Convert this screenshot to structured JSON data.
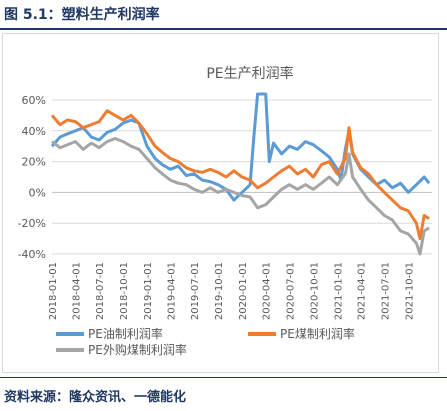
{
  "figure_title": "图 5.1：塑料生产利润率",
  "source": "资料来源：隆众资讯、一德能化",
  "colors": {
    "oil": "#5b9bd5",
    "coal": "#ed7d31",
    "purchased": "#a5a5a5",
    "title": "#1f3864"
  },
  "chart_data": {
    "type": "line",
    "title": "PE生产利润率",
    "xlabel": "",
    "ylabel": "",
    "ylim": [
      -0.4,
      0.6
    ],
    "yticks": [
      "-40%",
      "-20%",
      "0%",
      "20%",
      "40%",
      "60%"
    ],
    "x_tick_labels": [
      "2018-01-01",
      "2018-04-01",
      "2018-07-01",
      "2018-10-01",
      "2019-01-01",
      "2019-04-01",
      "2019-07-01",
      "2019-10-01",
      "2020-01-01",
      "2020-04-01",
      "2020-07-01",
      "2020-10-01",
      "2021-01-01",
      "2021-04-01",
      "2021-07-01",
      "2021-10-01"
    ],
    "grid": true,
    "legend_position": "bottom",
    "series": [
      {
        "name": "PE油制利润率",
        "color": "#5b9bd5",
        "points": [
          [
            "2018-01-01",
            0.3
          ],
          [
            "2018-02-01",
            0.36
          ],
          [
            "2018-03-01",
            0.38
          ],
          [
            "2018-04-01",
            0.4
          ],
          [
            "2018-05-01",
            0.42
          ],
          [
            "2018-06-01",
            0.36
          ],
          [
            "2018-07-01",
            0.34
          ],
          [
            "2018-08-01",
            0.39
          ],
          [
            "2018-09-01",
            0.41
          ],
          [
            "2018-10-01",
            0.45
          ],
          [
            "2018-11-01",
            0.47
          ],
          [
            "2018-12-01",
            0.45
          ],
          [
            "2019-01-01",
            0.3
          ],
          [
            "2019-02-01",
            0.22
          ],
          [
            "2019-03-01",
            0.18
          ],
          [
            "2019-04-01",
            0.15
          ],
          [
            "2019-05-01",
            0.17
          ],
          [
            "2019-06-01",
            0.11
          ],
          [
            "2019-07-01",
            0.12
          ],
          [
            "2019-08-01",
            0.08
          ],
          [
            "2019-09-01",
            0.07
          ],
          [
            "2019-10-01",
            0.05
          ],
          [
            "2019-11-01",
            0.02
          ],
          [
            "2019-12-01",
            -0.05
          ],
          [
            "2020-01-01",
            0.0
          ],
          [
            "2020-02-01",
            0.05
          ],
          [
            "2020-02-15",
            0.35
          ],
          [
            "2020-03-01",
            0.68
          ],
          [
            "2020-03-15",
            0.7
          ],
          [
            "2020-04-01",
            0.65
          ],
          [
            "2020-04-15",
            0.2
          ],
          [
            "2020-05-01",
            0.32
          ],
          [
            "2020-06-01",
            0.25
          ],
          [
            "2020-07-01",
            0.3
          ],
          [
            "2020-08-01",
            0.28
          ],
          [
            "2020-09-01",
            0.33
          ],
          [
            "2020-10-01",
            0.31
          ],
          [
            "2020-11-01",
            0.27
          ],
          [
            "2020-12-01",
            0.23
          ],
          [
            "2021-01-01",
            0.15
          ],
          [
            "2021-01-15",
            0.08
          ],
          [
            "2021-02-01",
            0.28
          ],
          [
            "2021-02-15",
            0.4
          ],
          [
            "2021-03-01",
            0.25
          ],
          [
            "2021-04-01",
            0.15
          ],
          [
            "2021-05-01",
            0.1
          ],
          [
            "2021-06-01",
            0.05
          ],
          [
            "2021-07-01",
            0.08
          ],
          [
            "2021-08-01",
            0.03
          ],
          [
            "2021-09-01",
            0.06
          ],
          [
            "2021-10-01",
            0.0
          ],
          [
            "2021-11-01",
            0.05
          ],
          [
            "2021-12-01",
            0.1
          ],
          [
            "2021-12-20",
            0.06
          ]
        ]
      },
      {
        "name": "PE煤制利润率",
        "color": "#ed7d31",
        "points": [
          [
            "2018-01-01",
            0.5
          ],
          [
            "2018-02-01",
            0.44
          ],
          [
            "2018-03-01",
            0.47
          ],
          [
            "2018-04-01",
            0.46
          ],
          [
            "2018-05-01",
            0.42
          ],
          [
            "2018-06-01",
            0.44
          ],
          [
            "2018-07-01",
            0.46
          ],
          [
            "2018-08-01",
            0.53
          ],
          [
            "2018-09-01",
            0.5
          ],
          [
            "2018-10-01",
            0.47
          ],
          [
            "2018-11-01",
            0.5
          ],
          [
            "2018-12-01",
            0.45
          ],
          [
            "2019-01-01",
            0.38
          ],
          [
            "2019-02-01",
            0.3
          ],
          [
            "2019-03-01",
            0.26
          ],
          [
            "2019-04-01",
            0.22
          ],
          [
            "2019-05-01",
            0.2
          ],
          [
            "2019-06-01",
            0.16
          ],
          [
            "2019-07-01",
            0.14
          ],
          [
            "2019-08-01",
            0.13
          ],
          [
            "2019-09-01",
            0.15
          ],
          [
            "2019-10-01",
            0.13
          ],
          [
            "2019-11-01",
            0.1
          ],
          [
            "2019-12-01",
            0.14
          ],
          [
            "2020-01-01",
            0.1
          ],
          [
            "2020-02-01",
            0.08
          ],
          [
            "2020-03-01",
            0.03
          ],
          [
            "2020-04-01",
            0.06
          ],
          [
            "2020-05-01",
            0.1
          ],
          [
            "2020-06-01",
            0.14
          ],
          [
            "2020-07-01",
            0.17
          ],
          [
            "2020-08-01",
            0.12
          ],
          [
            "2020-09-01",
            0.15
          ],
          [
            "2020-10-01",
            0.1
          ],
          [
            "2020-11-01",
            0.18
          ],
          [
            "2020-12-01",
            0.2
          ],
          [
            "2021-01-01",
            0.12
          ],
          [
            "2021-02-01",
            0.22
          ],
          [
            "2021-02-15",
            0.42
          ],
          [
            "2021-03-01",
            0.26
          ],
          [
            "2021-04-01",
            0.16
          ],
          [
            "2021-05-01",
            0.12
          ],
          [
            "2021-06-01",
            0.05
          ],
          [
            "2021-07-01",
            0.0
          ],
          [
            "2021-08-01",
            -0.05
          ],
          [
            "2021-09-01",
            -0.1
          ],
          [
            "2021-10-01",
            -0.12
          ],
          [
            "2021-11-01",
            -0.2
          ],
          [
            "2021-11-15",
            -0.3
          ],
          [
            "2021-12-01",
            -0.15
          ],
          [
            "2021-12-20",
            -0.17
          ]
        ]
      },
      {
        "name": "PE外购煤制利润率",
        "color": "#a5a5a5",
        "points": [
          [
            "2018-01-01",
            0.33
          ],
          [
            "2018-02-01",
            0.29
          ],
          [
            "2018-03-01",
            0.31
          ],
          [
            "2018-04-01",
            0.33
          ],
          [
            "2018-05-01",
            0.28
          ],
          [
            "2018-06-01",
            0.32
          ],
          [
            "2018-07-01",
            0.29
          ],
          [
            "2018-08-01",
            0.33
          ],
          [
            "2018-09-01",
            0.35
          ],
          [
            "2018-10-01",
            0.33
          ],
          [
            "2018-11-01",
            0.3
          ],
          [
            "2018-12-01",
            0.28
          ],
          [
            "2019-01-01",
            0.22
          ],
          [
            "2019-02-01",
            0.16
          ],
          [
            "2019-03-01",
            0.12
          ],
          [
            "2019-04-01",
            0.08
          ],
          [
            "2019-05-01",
            0.06
          ],
          [
            "2019-06-01",
            0.05
          ],
          [
            "2019-07-01",
            0.02
          ],
          [
            "2019-08-01",
            0.0
          ],
          [
            "2019-09-01",
            0.03
          ],
          [
            "2019-10-01",
            0.0
          ],
          [
            "2019-11-01",
            0.02
          ],
          [
            "2019-12-01",
            0.0
          ],
          [
            "2020-01-01",
            -0.02
          ],
          [
            "2020-02-01",
            -0.03
          ],
          [
            "2020-03-01",
            -0.1
          ],
          [
            "2020-04-01",
            -0.08
          ],
          [
            "2020-05-01",
            -0.03
          ],
          [
            "2020-06-01",
            0.02
          ],
          [
            "2020-07-01",
            0.05
          ],
          [
            "2020-08-01",
            0.02
          ],
          [
            "2020-09-01",
            0.05
          ],
          [
            "2020-10-01",
            0.02
          ],
          [
            "2020-11-01",
            0.06
          ],
          [
            "2020-12-01",
            0.1
          ],
          [
            "2021-01-01",
            0.05
          ],
          [
            "2021-02-01",
            0.12
          ],
          [
            "2021-02-15",
            0.25
          ],
          [
            "2021-03-01",
            0.1
          ],
          [
            "2021-04-01",
            0.02
          ],
          [
            "2021-05-01",
            -0.05
          ],
          [
            "2021-06-01",
            -0.1
          ],
          [
            "2021-07-01",
            -0.15
          ],
          [
            "2021-08-01",
            -0.18
          ],
          [
            "2021-09-01",
            -0.25
          ],
          [
            "2021-10-01",
            -0.27
          ],
          [
            "2021-11-01",
            -0.33
          ],
          [
            "2021-11-15",
            -0.4
          ],
          [
            "2021-12-01",
            -0.25
          ],
          [
            "2021-12-20",
            -0.23
          ]
        ]
      }
    ]
  }
}
